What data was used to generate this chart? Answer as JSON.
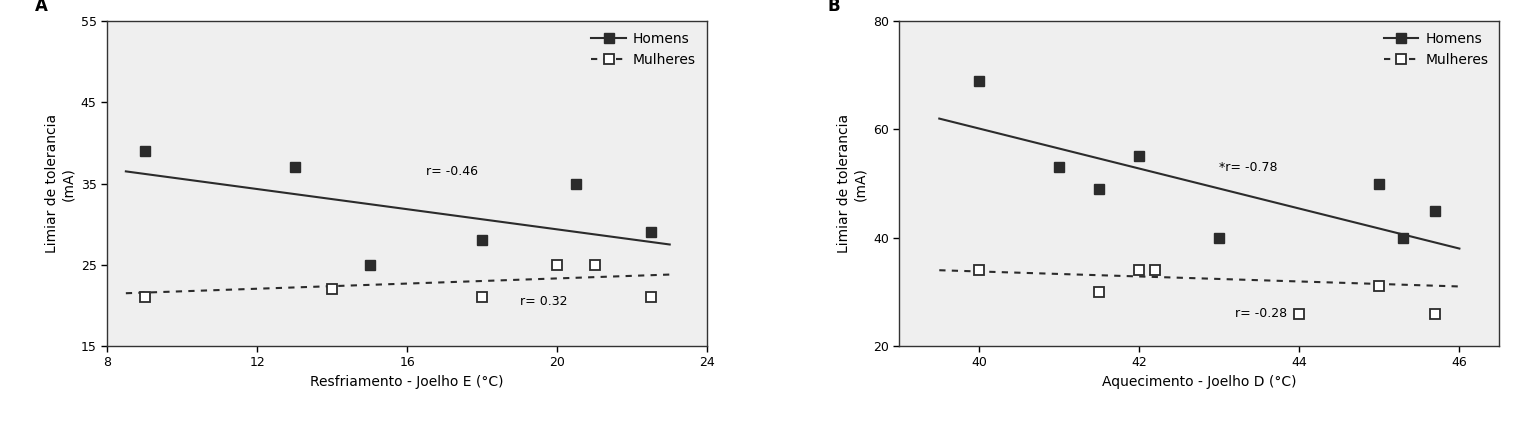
{
  "panel_A": {
    "title": "A",
    "xlabel": "Resfriamento - Joelho E (°C)",
    "ylabel": "Limiar de tolerancia\n(mA)",
    "xlim": [
      8,
      24
    ],
    "ylim": [
      15,
      55
    ],
    "xticks": [
      8,
      12,
      16,
      20,
      24
    ],
    "yticks": [
      15,
      25,
      35,
      45,
      55
    ],
    "men_x": [
      9.0,
      13.0,
      15.0,
      18.0,
      20.5,
      22.5
    ],
    "men_y": [
      39,
      37,
      25,
      28,
      35,
      29
    ],
    "women_x": [
      9.0,
      14.0,
      18.0,
      20.0,
      21.0,
      22.5
    ],
    "women_y": [
      21,
      22,
      21,
      25,
      25,
      21
    ],
    "men_line_x": [
      8.5,
      23.0
    ],
    "men_line_y": [
      36.5,
      27.5
    ],
    "women_line_x": [
      8.5,
      23.0
    ],
    "women_line_y": [
      21.5,
      23.8
    ],
    "r_men": "r= -0.46",
    "r_men_x": 16.5,
    "r_men_y": 36.5,
    "r_women": "r= 0.32",
    "r_women_x": 19.0,
    "r_women_y": 20.5
  },
  "panel_B": {
    "title": "B",
    "xlabel": "Aquecimento - Joelho D (°C)",
    "ylabel": "Limiar de tolerancia\n(mA)",
    "xlim": [
      39.0,
      46.5
    ],
    "ylim": [
      20,
      80
    ],
    "xticks": [
      40,
      42,
      44,
      46
    ],
    "yticks": [
      20,
      40,
      60,
      80
    ],
    "men_x": [
      40.0,
      41.0,
      41.5,
      42.0,
      43.0,
      45.0,
      45.3,
      45.7
    ],
    "men_y": [
      69,
      53,
      49,
      55,
      40,
      50,
      40,
      45
    ],
    "women_x": [
      40.0,
      41.5,
      42.0,
      42.2,
      44.0,
      45.0,
      45.7
    ],
    "women_y": [
      34,
      30,
      34,
      34,
      26,
      31,
      26
    ],
    "men_line_x": [
      39.5,
      46.0
    ],
    "men_line_y": [
      62.0,
      38.0
    ],
    "women_line_x": [
      39.5,
      46.0
    ],
    "women_line_y": [
      34.0,
      31.0
    ],
    "r_men": "*r= -0.78",
    "r_men_x": 43.0,
    "r_men_y": 53,
    "r_women": "r= -0.28",
    "r_women_x": 43.2,
    "r_women_y": 26.0
  },
  "legend_homens": "Homens",
  "legend_mulheres": "Mulheres",
  "men_color": "#2b2b2b",
  "marker_size": 7,
  "line_width": 1.5,
  "font_size_label": 10,
  "font_size_tick": 9,
  "font_size_annot": 9,
  "font_size_legend": 10,
  "font_size_panel": 12,
  "panel_bg": "#e8e8e8"
}
